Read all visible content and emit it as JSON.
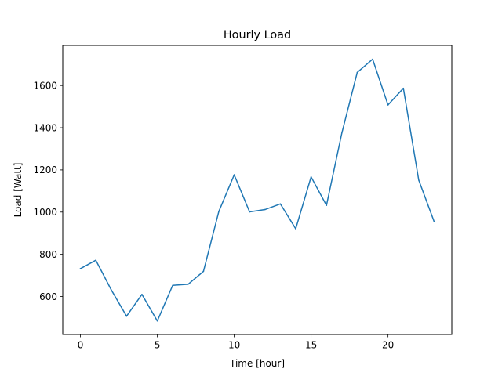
{
  "chart_data": {
    "type": "line",
    "title": "Hourly Load",
    "xlabel": "Time [hour]",
    "ylabel": "Load [Watt]",
    "xlim": [
      -1.15,
      24.15
    ],
    "ylim": [
      420,
      1790
    ],
    "xticks": [
      0,
      5,
      10,
      15,
      20
    ],
    "yticks": [
      600,
      800,
      1000,
      1200,
      1400,
      1600
    ],
    "grid": false,
    "series": [
      {
        "color": "#1f77b4",
        "x": [
          0,
          1,
          2,
          3,
          4,
          5,
          6,
          7,
          8,
          9,
          10,
          11,
          12,
          13,
          14,
          15,
          16,
          17,
          18,
          19,
          20,
          21,
          22,
          23
        ],
        "values": [
          732,
          772,
          632,
          507,
          610,
          484,
          653,
          658,
          719,
          1003,
          1177,
          1001,
          1012,
          1039,
          921,
          1167,
          1032,
          1375,
          1662,
          1725,
          1508,
          1587,
          1152,
          955
        ]
      }
    ]
  }
}
